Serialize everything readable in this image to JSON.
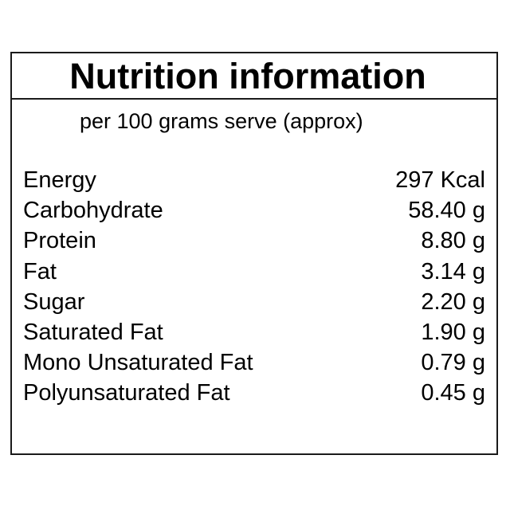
{
  "title": "Nutrition information",
  "subtitle": "per 100 grams serve (approx)",
  "nutrients": [
    {
      "name": "Energy",
      "value": "297 Kcal"
    },
    {
      "name": "Carbohydrate",
      "value": "58.40 g"
    },
    {
      "name": "Protein",
      "value": "8.80 g"
    },
    {
      "name": "Fat",
      "value": "3.14 g"
    },
    {
      "name": "Sugar",
      "value": "2.20 g"
    },
    {
      "name": "Saturated Fat",
      "value": "1.90 g"
    },
    {
      "name": "Mono Unsaturated Fat",
      "value": "0.79 g"
    },
    {
      "name": "Polyunsaturated Fat",
      "value": "0.45 g"
    }
  ]
}
